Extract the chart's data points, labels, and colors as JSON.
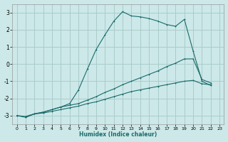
{
  "xlabel": "Humidex (Indice chaleur)",
  "xlim": [
    -0.5,
    23.5
  ],
  "ylim": [
    -3.5,
    3.5
  ],
  "xticks": [
    0,
    1,
    2,
    3,
    4,
    5,
    6,
    7,
    8,
    9,
    10,
    11,
    12,
    13,
    14,
    15,
    16,
    17,
    18,
    19,
    20,
    21,
    22,
    23
  ],
  "yticks": [
    -3,
    -2,
    -1,
    0,
    1,
    2,
    3
  ],
  "bg_color": "#cce8e8",
  "grid_color": "#aacccc",
  "line_color": "#1a6b6b",
  "lines": [
    {
      "x": [
        0,
        1,
        2,
        3,
        4,
        5,
        6,
        7,
        8,
        9,
        10,
        11,
        12,
        13,
        14,
        15,
        16,
        17,
        18,
        19,
        20,
        21,
        22
      ],
      "y": [
        -3.0,
        -3.1,
        -2.9,
        -2.85,
        -2.75,
        -2.65,
        -2.55,
        -2.45,
        -2.3,
        -2.2,
        -2.05,
        -1.9,
        -1.75,
        -1.6,
        -1.5,
        -1.4,
        -1.3,
        -1.2,
        -1.1,
        -1.0,
        -0.95,
        -1.15,
        -1.2
      ]
    },
    {
      "x": [
        0,
        1,
        2,
        3,
        4,
        5,
        6,
        7,
        8,
        9,
        10,
        11,
        12,
        13,
        14,
        15,
        16,
        17,
        18,
        19,
        20,
        21,
        22
      ],
      "y": [
        -3.0,
        -3.05,
        -2.9,
        -2.8,
        -2.65,
        -2.5,
        -2.4,
        -2.3,
        -2.1,
        -1.9,
        -1.65,
        -1.45,
        -1.2,
        -1.0,
        -0.8,
        -0.6,
        -0.4,
        -0.15,
        0.05,
        0.3,
        0.3,
        -0.9,
        -1.1
      ]
    },
    {
      "x": [
        1,
        2,
        3,
        4,
        5,
        6,
        7,
        8,
        9,
        10,
        11,
        12,
        13,
        14,
        15,
        16,
        17,
        18,
        19,
        20,
        21,
        22
      ],
      "y": [
        -3.1,
        -2.9,
        -2.8,
        -2.65,
        -2.5,
        -2.3,
        -1.5,
        -0.3,
        0.85,
        1.7,
        2.5,
        3.05,
        2.8,
        2.75,
        2.65,
        2.5,
        2.3,
        2.2,
        2.6,
        0.75,
        -1.0,
        -1.25
      ]
    }
  ]
}
